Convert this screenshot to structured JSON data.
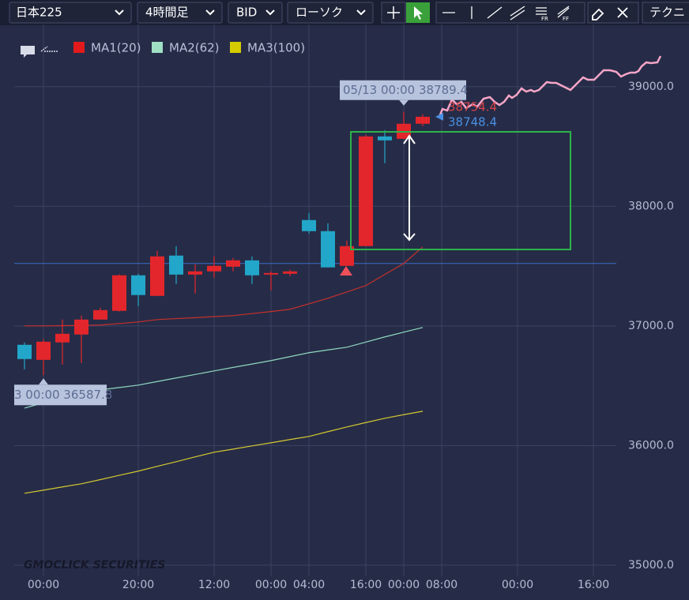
{
  "toolbar": {
    "symbol": "日本225",
    "timeframe": "4時間足",
    "side": "BID",
    "chart_style": "ローソク",
    "technical": "テクニ"
  },
  "chart_data": {
    "type": "candlestick",
    "categories": [
      null,
      "00:00",
      null,
      null,
      null,
      null,
      "20:00",
      null,
      null,
      null,
      "12:00",
      null,
      null,
      "00:00",
      null,
      "04:00",
      null,
      null,
      "16:00",
      null,
      "00:00",
      null,
      "08:00",
      null,
      null,
      null,
      "00:00",
      null,
      null,
      null,
      "16:00",
      null
    ],
    "open": [
      36842,
      36716,
      36862,
      36928,
      37053,
      37126,
      37423,
      37251,
      37588,
      37429,
      37456,
      37495,
      37548,
      37429,
      37436,
      37885,
      37792,
      37502,
      37667,
      38584,
      38564,
      38690,
      null,
      null,
      null,
      null,
      null,
      null,
      null,
      null,
      null,
      null
    ],
    "high": [
      36861,
      36888,
      37053,
      37086,
      37152,
      37430,
      37436,
      37627,
      37667,
      37515,
      37581,
      37568,
      37581,
      37456,
      37469,
      37944,
      37858,
      37713,
      38597,
      38637,
      38789.4,
      38769,
      null,
      null,
      null,
      null,
      null,
      null,
      null,
      null,
      null,
      null
    ],
    "low": [
      36637,
      36587.8,
      36677,
      36690,
      37053,
      37120,
      37165,
      37251,
      37350,
      37271,
      37403,
      37456,
      37350,
      37297,
      37416,
      37772,
      37489,
      37502,
      37667,
      38360,
      38564,
      38670,
      null,
      null,
      null,
      null,
      null,
      null,
      null,
      null,
      null,
      null
    ],
    "close": [
      36723,
      36868,
      36934,
      37053,
      37132,
      37423,
      37258,
      37581,
      37429,
      37456,
      37502,
      37548,
      37423,
      37442,
      37456,
      37792,
      37489,
      37667,
      38584,
      38551,
      38690,
      38748.4,
      null,
      null,
      null,
      null,
      null,
      null,
      null,
      null,
      null,
      null
    ],
    "up_color": "#e3262b",
    "down_color": "#22a6c9",
    "series": [
      {
        "name": "MA1(20)",
        "color": "#c7302c",
        "swatch": "#e31a1c",
        "values": [
          37000,
          37000,
          37002,
          37004,
          37007,
          37020,
          37033,
          37053,
          37061,
          37069,
          37078,
          37086,
          37103,
          37120,
          37139,
          37185,
          37231,
          37284,
          37337,
          37430,
          37522,
          37660,
          null,
          null,
          null,
          null,
          null,
          null,
          null,
          null,
          null,
          null
        ]
      },
      {
        "name": "MA2(62)",
        "color": "#8fd8c0",
        "swatch": "#9fe0c4",
        "values": [
          36313,
          36357,
          36402,
          36446,
          36466,
          36485,
          36505,
          36535,
          36565,
          36594,
          36624,
          36653,
          36681,
          36710,
          36743,
          36776,
          36799,
          36822,
          36865,
          36908,
          36948,
          36987,
          null,
          null,
          null,
          null,
          null,
          null,
          null,
          null,
          null,
          null
        ]
      },
      {
        "name": "MA3(100)",
        "color": "#d4c830",
        "swatch": "#d4cc00",
        "values": [
          35601,
          35627,
          35654,
          35680,
          35715,
          35751,
          35786,
          35826,
          35865,
          35905,
          35944,
          35970,
          35997,
          36023,
          36050,
          36076,
          36116,
          36155,
          36192,
          36228,
          36258,
          36287,
          null,
          null,
          null,
          null,
          null,
          null,
          null,
          null,
          null,
          null
        ]
      }
    ],
    "ylim": [
      34900,
      39520
    ],
    "yticks": [
      {
        "value": 35000,
        "label": "35000.0"
      },
      {
        "value": 36000,
        "label": "36000.0"
      },
      {
        "value": 37000,
        "label": "37000.0"
      },
      {
        "value": 38000,
        "label": "38000.0"
      },
      {
        "value": 39000,
        "label": "39000.0"
      }
    ],
    "grid": true,
    "price_line": 37522,
    "ask": 38754.4,
    "ask_color": "#d9434b",
    "bid": 38748.4,
    "bid_color": "#4a90e2",
    "high_label": "05/13 00:00 38789.4",
    "low_label": "3 00:00 36587.8",
    "watermark": "GMOCLICK SECURITIES"
  }
}
